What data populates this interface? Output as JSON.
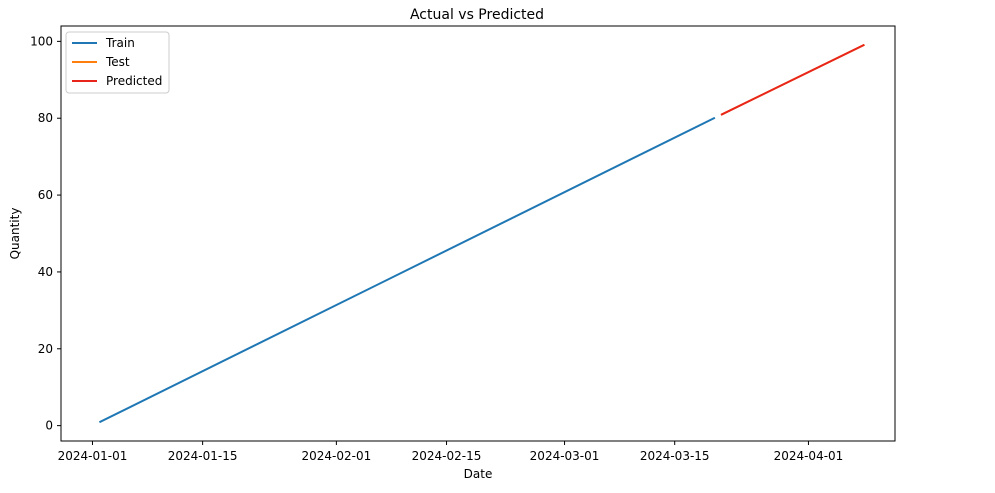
{
  "chart_data": {
    "type": "line",
    "title": "Actual vs Predicted",
    "xlabel": "Date",
    "ylabel": "Quantity",
    "x_axis_type": "date",
    "xlim": [
      "2023-12-28",
      "2024-04-12"
    ],
    "ylim": [
      -4,
      104
    ],
    "x_ticks": [
      "2024-01-01",
      "2024-01-15",
      "2024-02-01",
      "2024-02-15",
      "2024-03-01",
      "2024-03-15",
      "2024-04-01"
    ],
    "y_ticks": [
      0,
      20,
      40,
      60,
      80,
      100
    ],
    "grid": false,
    "legend": {
      "placement": "upper-left",
      "entries": [
        "Train",
        "Test",
        "Predicted"
      ]
    },
    "series": [
      {
        "name": "Train",
        "color": "#1f77b4",
        "x": [
          "2024-01-02",
          "2024-03-20"
        ],
        "y": [
          1,
          80
        ]
      },
      {
        "name": "Test",
        "color": "#ff7f0e",
        "x": [
          "2024-03-21",
          "2024-04-08"
        ],
        "y": [
          81,
          99
        ]
      },
      {
        "name": "Predicted",
        "color": "#e8251a",
        "x": [
          "2024-03-21",
          "2024-04-08"
        ],
        "y": [
          81,
          99
        ]
      }
    ]
  }
}
